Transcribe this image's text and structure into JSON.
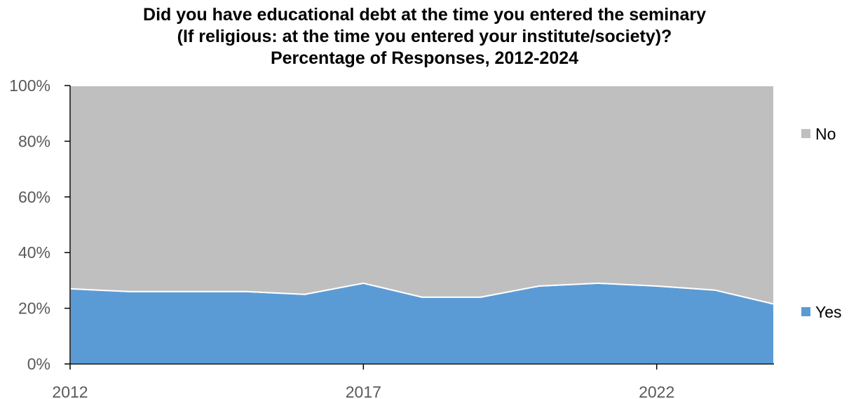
{
  "chart_data": {
    "type": "area",
    "stacked": "percent",
    "title": [
      "Did you have educational debt at the time you entered the seminary",
      "(If religious: at the time you entered your institute/society)?",
      "Percentage of Responses, 2012-2024"
    ],
    "x": [
      2012,
      2013,
      2014,
      2015,
      2016,
      2017,
      2018,
      2019,
      2020,
      2021,
      2022,
      2023,
      2024
    ],
    "x_tick_labels": [
      "2012",
      "2017",
      "2022"
    ],
    "x_tick_values": [
      2012,
      2017,
      2022
    ],
    "ylim": [
      0,
      100
    ],
    "y_ticks": [
      0,
      20,
      40,
      60,
      80,
      100
    ],
    "y_tick_labels": [
      "0%",
      "20%",
      "40%",
      "60%",
      "80%",
      "100%"
    ],
    "series": [
      {
        "name": "Yes",
        "color": "#5B9BD5",
        "values": [
          27,
          26,
          26,
          26,
          25,
          29,
          24,
          24,
          28,
          29,
          28,
          26.5,
          21.5
        ]
      },
      {
        "name": "No",
        "color": "#BFBFBF",
        "values": [
          73,
          74,
          74,
          74,
          75,
          71,
          76,
          76,
          72,
          71,
          72,
          73.5,
          78.5
        ]
      }
    ],
    "legend": {
      "position": "right",
      "entries": [
        "No",
        "Yes"
      ]
    },
    "grid": false
  }
}
